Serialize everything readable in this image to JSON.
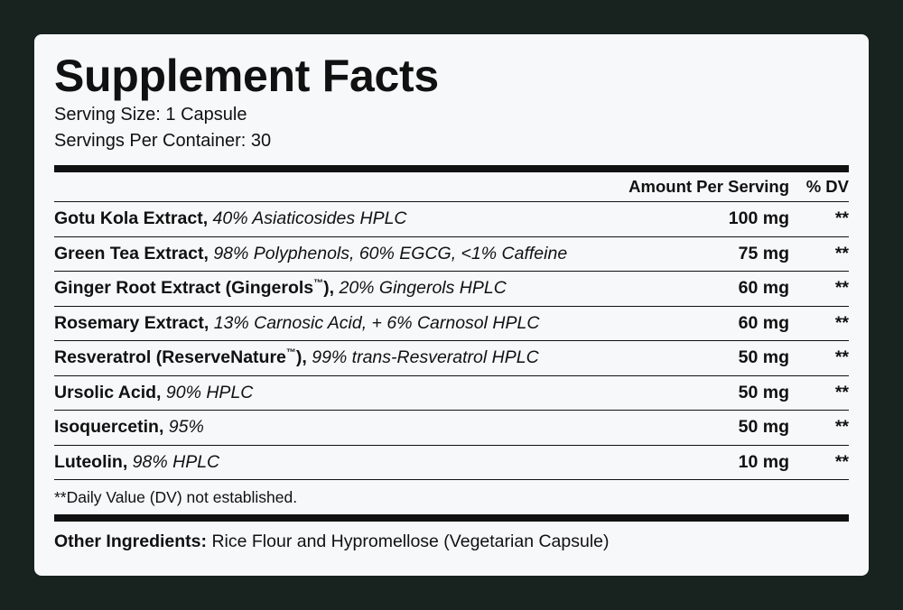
{
  "title": "Supplement Facts",
  "serving_size": "Serving Size: 1 Capsule",
  "servings_per_container": "Servings Per Container: 30",
  "table": {
    "header_amount": "Amount Per Serving",
    "header_dv": "% DV",
    "rows": [
      {
        "name": "Gotu Kola Extract,",
        "tm": "",
        "name_tail": "",
        "desc": "40% Asiaticosides HPLC",
        "amount": "100 mg",
        "dv": "**"
      },
      {
        "name": "Green Tea Extract,",
        "tm": "",
        "name_tail": "",
        "desc": "98% Polyphenols, 60% EGCG, <1% Caffeine",
        "amount": "75 mg",
        "dv": "**"
      },
      {
        "name": "Ginger Root Extract (Gingerols",
        "tm": "™",
        "name_tail": "),",
        "desc": "20% Gingerols HPLC",
        "amount": "60 mg",
        "dv": "**"
      },
      {
        "name": "Rosemary Extract,",
        "tm": "",
        "name_tail": "",
        "desc": "13% Carnosic Acid, + 6% Carnosol HPLC",
        "amount": "60 mg",
        "dv": "**"
      },
      {
        "name": "Resveratrol (ReserveNature",
        "tm": "™",
        "name_tail": "),",
        "desc": "99% trans-Resveratrol HPLC",
        "amount": "50 mg",
        "dv": "**"
      },
      {
        "name": "Ursolic Acid,",
        "tm": "",
        "name_tail": "",
        "desc": "90% HPLC",
        "amount": "50 mg",
        "dv": "**"
      },
      {
        "name": "Isoquercetin,",
        "tm": "",
        "name_tail": "",
        "desc": "95%",
        "amount": "50 mg",
        "dv": "**"
      },
      {
        "name": "Luteolin,",
        "tm": "",
        "name_tail": "",
        "desc": "98% HPLC",
        "amount": "10 mg",
        "dv": "**"
      }
    ]
  },
  "footnote": "**Daily Value (DV) not established.",
  "other_ingredients": {
    "label": "Other Ingredients:",
    "text": "Rice Flour and Hypromellose (Vegetarian Capsule)"
  }
}
